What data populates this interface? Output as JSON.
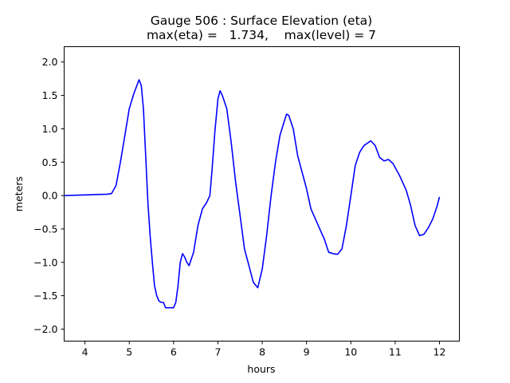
{
  "chart_data": {
    "type": "line",
    "title": "Gauge 506 : Surface Elevation (eta)",
    "subtitle": "max(eta) =   1.734,    max(level) = 7",
    "xlabel": "hours",
    "ylabel": "meters",
    "xlim": [
      3.53,
      12.45
    ],
    "ylim": [
      -2.18,
      2.23
    ],
    "xticks": [
      4,
      5,
      6,
      7,
      8,
      9,
      10,
      11,
      12
    ],
    "xtick_labels": [
      "4",
      "5",
      "6",
      "7",
      "8",
      "9",
      "10",
      "11",
      "12"
    ],
    "yticks": [
      -2.0,
      -1.5,
      -1.0,
      -0.5,
      0.0,
      0.5,
      1.0,
      1.5,
      2.0
    ],
    "ytick_labels": [
      "−2.0",
      "−1.5",
      "−1.0",
      "−0.5",
      "0.0",
      "0.5",
      "1.0",
      "1.5",
      "2.0"
    ],
    "grid": false,
    "series": [
      {
        "name": "eta",
        "color": "#0000ff",
        "x": [
          3.53,
          4.0,
          4.5,
          4.6,
          4.7,
          4.8,
          4.9,
          5.0,
          5.1,
          5.2,
          5.22,
          5.27,
          5.32,
          5.37,
          5.42,
          5.47,
          5.52,
          5.57,
          5.62,
          5.67,
          5.72,
          5.77,
          5.82,
          5.9,
          6.0,
          6.05,
          6.1,
          6.15,
          6.2,
          6.25,
          6.3,
          6.35,
          6.45,
          6.55,
          6.65,
          6.75,
          6.82,
          6.87,
          6.93,
          7.0,
          7.05,
          7.1,
          7.2,
          7.3,
          7.4,
          7.5,
          7.6,
          7.7,
          7.8,
          7.9,
          8.0,
          8.1,
          8.2,
          8.3,
          8.4,
          8.5,
          8.55,
          8.6,
          8.7,
          8.8,
          8.9,
          9.0,
          9.1,
          9.2,
          9.3,
          9.4,
          9.5,
          9.6,
          9.7,
          9.8,
          9.9,
          10.0,
          10.1,
          10.2,
          10.3,
          10.45,
          10.55,
          10.65,
          10.75,
          10.85,
          10.95,
          11.1,
          11.25,
          11.35,
          11.45,
          11.55,
          11.65,
          11.75,
          11.85,
          11.95,
          12.0
        ],
        "y": [
          0.0,
          0.01,
          0.02,
          0.03,
          0.15,
          0.5,
          0.9,
          1.3,
          1.52,
          1.7,
          1.734,
          1.65,
          1.3,
          0.6,
          -0.1,
          -0.6,
          -1.0,
          -1.35,
          -1.5,
          -1.58,
          -1.6,
          -1.6,
          -1.68,
          -1.68,
          -1.68,
          -1.6,
          -1.35,
          -1.0,
          -0.87,
          -0.92,
          -1.0,
          -1.05,
          -0.85,
          -0.45,
          -0.2,
          -0.1,
          0.0,
          0.4,
          0.95,
          1.45,
          1.57,
          1.5,
          1.3,
          0.8,
          0.2,
          -0.3,
          -0.8,
          -1.05,
          -1.3,
          -1.38,
          -1.1,
          -0.6,
          0.0,
          0.5,
          0.9,
          1.12,
          1.22,
          1.2,
          1.0,
          0.6,
          0.35,
          0.1,
          -0.2,
          -0.35,
          -0.5,
          -0.65,
          -0.85,
          -0.87,
          -0.88,
          -0.8,
          -0.45,
          0.0,
          0.45,
          0.65,
          0.75,
          0.82,
          0.75,
          0.57,
          0.52,
          0.54,
          0.48,
          0.3,
          0.08,
          -0.15,
          -0.45,
          -0.6,
          -0.58,
          -0.48,
          -0.35,
          -0.15,
          -0.02
        ]
      }
    ]
  }
}
